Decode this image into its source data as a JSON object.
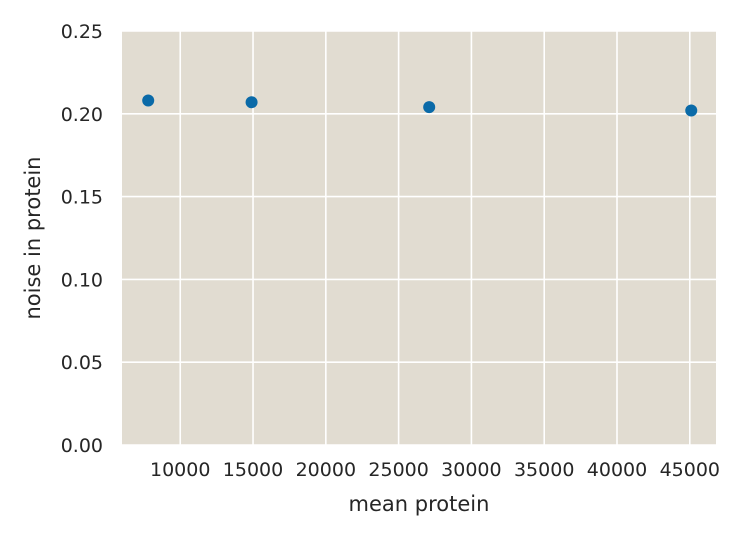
{
  "chart_data": {
    "type": "scatter",
    "xlabel": "mean protein",
    "ylabel": "noise in protein",
    "xlim": [
      6000,
      46800
    ],
    "ylim": [
      0,
      0.25
    ],
    "x_ticks": [
      10000,
      15000,
      20000,
      25000,
      30000,
      35000,
      40000,
      45000
    ],
    "y_ticks": [
      "0.00",
      "0.05",
      "0.10",
      "0.15",
      "0.20",
      "0.25"
    ],
    "grid": true,
    "colors": {
      "background": "#e1dcd1",
      "grid": "#ffffff",
      "point": "#0a6aa8"
    },
    "series": [
      {
        "x": [
          7800,
          14900,
          27100,
          45100
        ],
        "y": [
          0.208,
          0.207,
          0.204,
          0.202
        ]
      }
    ]
  }
}
